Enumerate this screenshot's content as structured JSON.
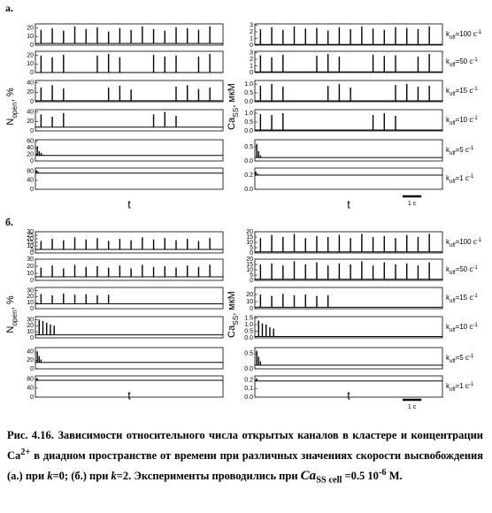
{
  "groups": [
    {
      "label": "а.",
      "xlim": [
        0,
        10
      ],
      "left_ylabel": {
        "main": "N",
        "sub": "open",
        "rest": ", %"
      },
      "right_ylabel": {
        "main": "Ca",
        "sub": "SS",
        "rest": ", мкМ"
      },
      "xlabel_left": "t",
      "xlabel_right": "t",
      "scalebar": {
        "label": "1 c",
        "length": 1
      },
      "k_labels": [
        {
          "main": "k",
          "sub": "off",
          "rest": "=100 c",
          "sup": "-1"
        },
        {
          "main": "k",
          "sub": "off",
          "rest": "=50 c",
          "sup": "-1"
        },
        {
          "main": "k",
          "sub": "off",
          "rest": "=15 c",
          "sup": "-1"
        },
        {
          "main": "k",
          "sub": "off",
          "rest": "=10 c",
          "sup": "-1"
        },
        {
          "main": "k",
          "sub": "off",
          "rest": "=5 c",
          "sup": "-1"
        },
        {
          "main": "k",
          "sub": "off",
          "rest": "=1 c",
          "sup": "-1"
        }
      ],
      "left": [
        {
          "type": "line",
          "ylim": [
            0,
            25
          ],
          "yticks": [
            0,
            10,
            20
          ],
          "baseline": 2,
          "x": [
            0.3,
            0.9,
            1.5,
            2.1,
            2.7,
            3.3,
            3.9,
            4.5,
            5.1,
            5.7,
            6.3,
            6.9,
            7.5,
            8.1,
            8.7,
            9.3
          ],
          "values": [
            18,
            20,
            17,
            22,
            19,
            21,
            16,
            20,
            18,
            22,
            19,
            17,
            21,
            20,
            18,
            22
          ]
        },
        {
          "type": "line",
          "ylim": [
            0,
            25
          ],
          "yticks": [
            0,
            10,
            20
          ],
          "baseline": 0,
          "x": [
            0.3,
            0.9,
            1.5,
            2.1,
            2.7,
            3.3,
            3.9,
            4.5,
            5.1,
            5.7,
            6.3,
            6.9,
            7.5,
            8.1,
            8.7,
            9.3
          ],
          "values": [
            20,
            18,
            21,
            null,
            null,
            20,
            22,
            18,
            null,
            null,
            21,
            19,
            20,
            null,
            19,
            22
          ]
        },
        {
          "type": "line",
          "ylim": [
            0,
            45
          ],
          "yticks": [
            0,
            20,
            40
          ],
          "baseline": 2,
          "x": [
            0.3,
            0.9,
            1.5,
            2.1,
            2.7,
            3.3,
            3.9,
            4.5,
            5.1,
            5.7,
            6.3,
            6.9,
            7.5,
            8.1,
            8.7,
            9.3
          ],
          "values": [
            30,
            35,
            28,
            null,
            null,
            null,
            30,
            34,
            26,
            null,
            null,
            null,
            32,
            35,
            27,
            30
          ]
        },
        {
          "type": "line",
          "ylim": [
            0,
            45
          ],
          "yticks": [
            0,
            20,
            40
          ],
          "baseline": 8,
          "x": [
            0.3,
            0.9,
            1.5,
            2.1,
            2.7,
            3.3,
            3.9,
            4.5,
            5.1,
            5.7,
            6.3,
            6.9,
            7.5,
            8.1,
            8.7,
            9.3
          ],
          "values": [
            35,
            30,
            38,
            null,
            null,
            null,
            null,
            null,
            null,
            null,
            35,
            40,
            32,
            null,
            null,
            null
          ]
        },
        {
          "type": "line",
          "ylim": [
            0,
            65
          ],
          "yticks": [
            0,
            20,
            40,
            60
          ],
          "baseline": 17,
          "x": [
            0.1,
            0.2,
            0.3,
            0.4
          ],
          "values": [
            45,
            30,
            25,
            20
          ]
        },
        {
          "type": "line",
          "ylim": [
            0,
            95
          ],
          "yticks": [
            0,
            40,
            80
          ],
          "baseline": 72,
          "x": [
            0.05,
            0.15
          ],
          "values": [
            85,
            78
          ]
        }
      ],
      "right": [
        {
          "type": "line",
          "ylim": [
            0,
            3.2
          ],
          "yticks": [
            0,
            1,
            2,
            3
          ],
          "baseline": 0.1,
          "x": [
            0.3,
            0.9,
            1.5,
            2.1,
            2.7,
            3.3,
            3.9,
            4.5,
            5.1,
            5.7,
            6.3,
            6.9,
            7.5,
            8.1,
            8.7,
            9.3
          ],
          "values": [
            2.4,
            2.7,
            2.3,
            2.8,
            2.5,
            2.6,
            2.2,
            2.7,
            2.4,
            2.8,
            2.5,
            2.3,
            2.7,
            2.6,
            2.4,
            2.8
          ]
        },
        {
          "type": "line",
          "ylim": [
            0,
            3.2
          ],
          "yticks": [
            0,
            1,
            2,
            3
          ],
          "baseline": 0.1,
          "x": [
            0.3,
            0.9,
            1.5,
            2.1,
            2.7,
            3.3,
            3.9,
            4.5,
            5.1,
            5.7,
            6.3,
            6.9,
            7.5,
            8.1,
            8.7,
            9.3
          ],
          "values": [
            2.6,
            2.3,
            2.7,
            null,
            null,
            2.5,
            2.8,
            2.4,
            null,
            null,
            2.7,
            2.5,
            2.6,
            null,
            2.4,
            2.8
          ]
        },
        {
          "type": "line",
          "ylim": [
            0,
            1.2
          ],
          "yticks": [
            {
              "value": 0,
              "label": "0.0"
            },
            0.5,
            {
              "value": 1,
              "label": "1.0"
            }
          ],
          "baseline": 0.05,
          "x": [
            0.3,
            0.9,
            1.5,
            2.1,
            2.7,
            3.3,
            3.9,
            4.5,
            5.1,
            5.7,
            6.3,
            6.9,
            7.5,
            8.1,
            8.7,
            9.3
          ],
          "values": [
            0.9,
            1.0,
            0.85,
            null,
            null,
            null,
            0.9,
            1.0,
            0.8,
            null,
            null,
            null,
            0.95,
            1.0,
            0.85,
            0.9
          ]
        },
        {
          "type": "line",
          "ylim": [
            0,
            1.2
          ],
          "yticks": [
            {
              "value": 0,
              "label": "0.0"
            },
            0.5,
            {
              "value": 1,
              "label": "1.0"
            }
          ],
          "baseline": 0.05,
          "x": [
            0.3,
            0.9,
            1.5,
            2.1,
            2.7,
            3.3,
            3.9,
            4.5,
            5.1,
            5.7,
            6.3,
            6.9,
            7.5,
            8.1,
            8.7,
            9.3
          ],
          "values": [
            0.95,
            0.9,
            1.0,
            null,
            null,
            null,
            null,
            null,
            null,
            null,
            0.9,
            1.0,
            0.85,
            null,
            null,
            null
          ]
        },
        {
          "type": "line",
          "ylim": [
            0,
            0.75
          ],
          "yticks": [
            {
              "value": 0,
              "label": "0.0"
            },
            0.5
          ],
          "baseline": 0.12,
          "x": [
            0.1,
            0.2,
            0.3
          ],
          "values": [
            0.6,
            0.35,
            0.2
          ]
        },
        {
          "type": "line",
          "ylim": [
            0,
            0.3
          ],
          "yticks": [
            {
              "value": 0,
              "label": "0.0"
            },
            0.2
          ],
          "baseline": 0.2,
          "x": [
            0.05,
            0.15
          ],
          "values": [
            0.25,
            0.22
          ]
        }
      ]
    },
    {
      "label": "б.",
      "xlim": [
        0,
        10
      ],
      "left_ylabel": {
        "main": "N",
        "sub": "open",
        "rest": ", %"
      },
      "right_ylabel": {
        "main": "Ca",
        "sub": "SS",
        "rest": ", мкМ"
      },
      "xlabel_left": "t",
      "xlabel_right": "t",
      "scalebar": {
        "label": "1 c",
        "length": 1
      },
      "k_labels": [
        {
          "main": "k",
          "sub": "off",
          "rest": "=100 c",
          "sup": "-1"
        },
        {
          "main": "k",
          "sub": "off",
          "rest": "=50 c",
          "sup": "-1"
        },
        {
          "main": "k",
          "sub": "off",
          "rest": "=15 c",
          "sup": "-1"
        },
        {
          "main": "k",
          "sub": "off",
          "rest": "=10 c",
          "sup": "-1"
        },
        {
          "main": "k",
          "sub": "off",
          "rest": "=5 c",
          "sup": "-1"
        },
        {
          "main": "k",
          "sub": "off",
          "rest": "=1 c",
          "sup": "-1"
        }
      ],
      "left": [
        {
          "type": "line",
          "ylim": [
            0,
            30
          ],
          "yticks": [
            0,
            5,
            10,
            15,
            20,
            25,
            30
          ],
          "baseline": 5,
          "x": [
            0.3,
            0.9,
            1.5,
            2.1,
            2.7,
            3.3,
            3.9,
            4.5,
            5.1,
            5.7,
            6.3,
            6.9,
            7.5,
            8.1,
            8.7,
            9.3
          ],
          "values": [
            17,
            20,
            18,
            22,
            19,
            21,
            17,
            20,
            18,
            22,
            19,
            21,
            18,
            20,
            17,
            21
          ]
        },
        {
          "type": "line",
          "ylim": [
            0,
            30
          ],
          "yticks": [
            0,
            10,
            20,
            30
          ],
          "baseline": 5,
          "x": [
            0.3,
            0.9,
            1.5,
            2.1,
            2.7,
            3.3,
            3.9,
            4.5,
            5.1,
            5.7,
            6.3,
            6.9,
            7.5,
            8.1,
            8.7,
            9.3
          ],
          "values": [
            18,
            21,
            17,
            22,
            19,
            20,
            18,
            21,
            17,
            22,
            19,
            20,
            18,
            21,
            19,
            22
          ]
        },
        {
          "type": "line",
          "ylim": [
            0,
            35
          ],
          "yticks": [
            0,
            10,
            20,
            30
          ],
          "baseline": 8,
          "x": [
            0.3,
            0.9,
            1.5,
            2.1,
            2.7,
            3.3,
            3.9,
            4.5,
            5.1,
            5.7,
            6.3,
            6.9,
            7.5,
            8.1,
            8.7,
            9.3
          ],
          "values": [
            24,
            22,
            25,
            23,
            24,
            22,
            23,
            null,
            null,
            null,
            null,
            null,
            null,
            null,
            null,
            null
          ]
        },
        {
          "type": "line",
          "ylim": [
            0,
            35
          ],
          "yticks": [
            0,
            10,
            20,
            30
          ],
          "baseline": 5,
          "x": [
            0.2,
            0.4,
            0.6,
            0.8,
            1.0
          ],
          "values": [
            30,
            28,
            25,
            22,
            20
          ]
        },
        {
          "type": "line",
          "ylim": [
            0,
            50
          ],
          "yticks": [
            0,
            20,
            40
          ],
          "baseline": 15,
          "x": [
            0.1,
            0.2,
            0.3
          ],
          "values": [
            40,
            30,
            22
          ]
        },
        {
          "type": "line",
          "ylim": [
            0,
            95
          ],
          "yticks": [
            0,
            40,
            80
          ],
          "baseline": 75,
          "x": [
            0.1
          ],
          "values": [
            85
          ]
        }
      ],
      "right": [
        {
          "type": "line",
          "ylim": [
            0,
            20
          ],
          "yticks": [
            0,
            5,
            10,
            15,
            20
          ],
          "baseline": 1,
          "x": [
            0.3,
            0.9,
            1.5,
            2.1,
            2.7,
            3.3,
            3.9,
            4.5,
            5.1,
            5.7,
            6.3,
            6.9,
            7.5,
            8.1,
            8.7,
            9.3
          ],
          "values": [
            14,
            17,
            15,
            18,
            14,
            16,
            15,
            17,
            14,
            18,
            15,
            16,
            14,
            17,
            15,
            18
          ]
        },
        {
          "type": "line",
          "ylim": [
            0,
            20
          ],
          "yticks": [
            0,
            5,
            10,
            15,
            20
          ],
          "baseline": 1,
          "x": [
            0.3,
            0.9,
            1.5,
            2.1,
            2.7,
            3.3,
            3.9,
            4.5,
            5.1,
            5.7,
            6.3,
            6.9,
            7.5,
            8.1,
            8.7,
            9.3
          ],
          "values": [
            15,
            16,
            14,
            18,
            15,
            17,
            14,
            16,
            15,
            18,
            14,
            17,
            15,
            16,
            14,
            17
          ]
        },
        {
          "type": "line",
          "ylim": [
            0,
            30
          ],
          "yticks": [
            0,
            10,
            20
          ],
          "baseline": 2,
          "x": [
            0.3,
            0.9,
            1.5,
            2.1,
            2.7,
            3.3,
            3.9,
            4.5,
            5.1,
            5.7,
            6.3,
            6.9,
            7.5,
            8.1,
            8.7,
            9.3
          ],
          "values": [
            20,
            18,
            21,
            19,
            20,
            18,
            19,
            null,
            null,
            null,
            null,
            null,
            null,
            null,
            null,
            null
          ]
        },
        {
          "type": "line",
          "ylim": [
            0,
            1.6
          ],
          "yticks": [
            {
              "value": 0,
              "label": "0.0"
            },
            0.5,
            {
              "value": 1,
              "label": "1.0"
            },
            1.5
          ],
          "baseline": 0.1,
          "x": [
            0.2,
            0.4,
            0.6,
            0.8,
            1.0
          ],
          "values": [
            1.3,
            1.1,
            1.0,
            0.8,
            0.7
          ]
        },
        {
          "type": "line",
          "ylim": [
            0,
            0.7
          ],
          "yticks": [
            {
              "value": 0,
              "label": "0.0"
            },
            0.5
          ],
          "baseline": 0.12,
          "x": [
            0.1,
            0.2,
            0.3
          ],
          "values": [
            0.6,
            0.4,
            0.25
          ]
        },
        {
          "type": "line",
          "ylim": [
            0,
            0.25
          ],
          "yticks": [
            {
              "value": 0,
              "label": "0.0"
            },
            0.1,
            0.2
          ],
          "baseline": 0.19,
          "x": [
            0.1
          ],
          "values": [
            0.22
          ]
        }
      ]
    }
  ],
  "caption": [
    "Рис. 4.16.",
    "Зависимости относительного числа открытых каналов в кластере и концентрации Ca",
    "2+",
    " в диадном пространстве от времени при различных значениях скорости высвобождения (а.) при ",
    "k",
    "=0; (б.) при ",
    "k",
    "=2. Эксперименты проводились при ",
    "Ca",
    "SS cell",
    " =0.5 10",
    "-6",
    " М."
  ]
}
